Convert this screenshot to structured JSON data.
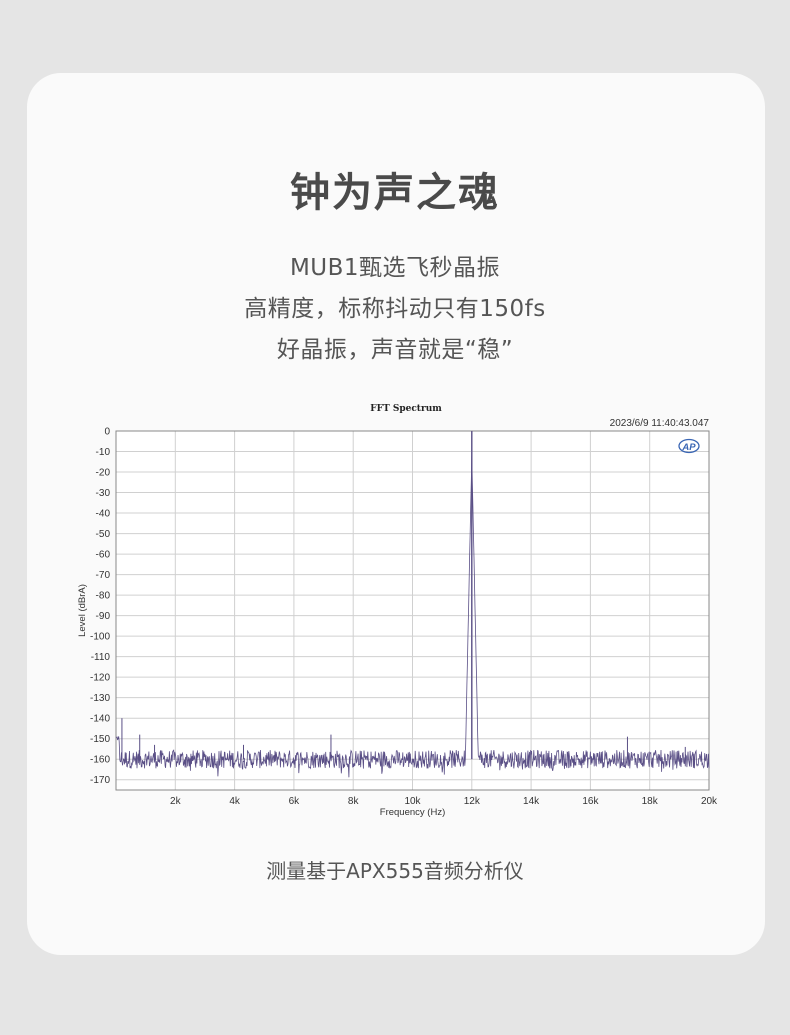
{
  "headline": "钟为声之魂",
  "subtitle_lines": [
    "MUB1甄选飞秒晶振",
    "高精度，标称抖动只有150fs",
    "好晶振，声音就是“稳”"
  ],
  "footer": "测量基于APX555音频分析仪",
  "colors": {
    "trace": "#5a4f86",
    "grid": "#d0d0d0",
    "frame": "#888888",
    "background": "#e5e5e5",
    "card": "#fafafa",
    "text": "#555555",
    "logo": "#3a66b4"
  },
  "chart_data": {
    "type": "line",
    "title": "FFT Spectrum",
    "timestamp": "2023/6/9 11:40:43.047",
    "logo": "AP",
    "xlabel": "Frequency (Hz)",
    "ylabel": "Level (dBrA)",
    "xlim": [
      0,
      20000
    ],
    "ylim": [
      -175,
      0
    ],
    "x_ticks": [
      {
        "value": 2000,
        "label": "2k"
      },
      {
        "value": 4000,
        "label": "4k"
      },
      {
        "value": 6000,
        "label": "6k"
      },
      {
        "value": 8000,
        "label": "8k"
      },
      {
        "value": 10000,
        "label": "10k"
      },
      {
        "value": 12000,
        "label": "12k"
      },
      {
        "value": 14000,
        "label": "14k"
      },
      {
        "value": 16000,
        "label": "16k"
      },
      {
        "value": 18000,
        "label": "18k"
      },
      {
        "value": 20000,
        "label": "20k"
      }
    ],
    "y_ticks": [
      0,
      -10,
      -20,
      -30,
      -40,
      -50,
      -60,
      -70,
      -80,
      -90,
      -100,
      -110,
      -120,
      -130,
      -140,
      -150,
      -160,
      -170
    ],
    "grid": true,
    "noise_floor_db": -160,
    "fundamental": {
      "x": 12000,
      "y": 0
    },
    "spurs": [
      {
        "x": 200,
        "y": -140
      },
      {
        "x": 800,
        "y": -148
      },
      {
        "x": 1300,
        "y": -153
      },
      {
        "x": 4300,
        "y": -153
      },
      {
        "x": 7250,
        "y": -148
      },
      {
        "x": 17250,
        "y": -149
      },
      {
        "x": 19200,
        "y": -154
      }
    ]
  }
}
